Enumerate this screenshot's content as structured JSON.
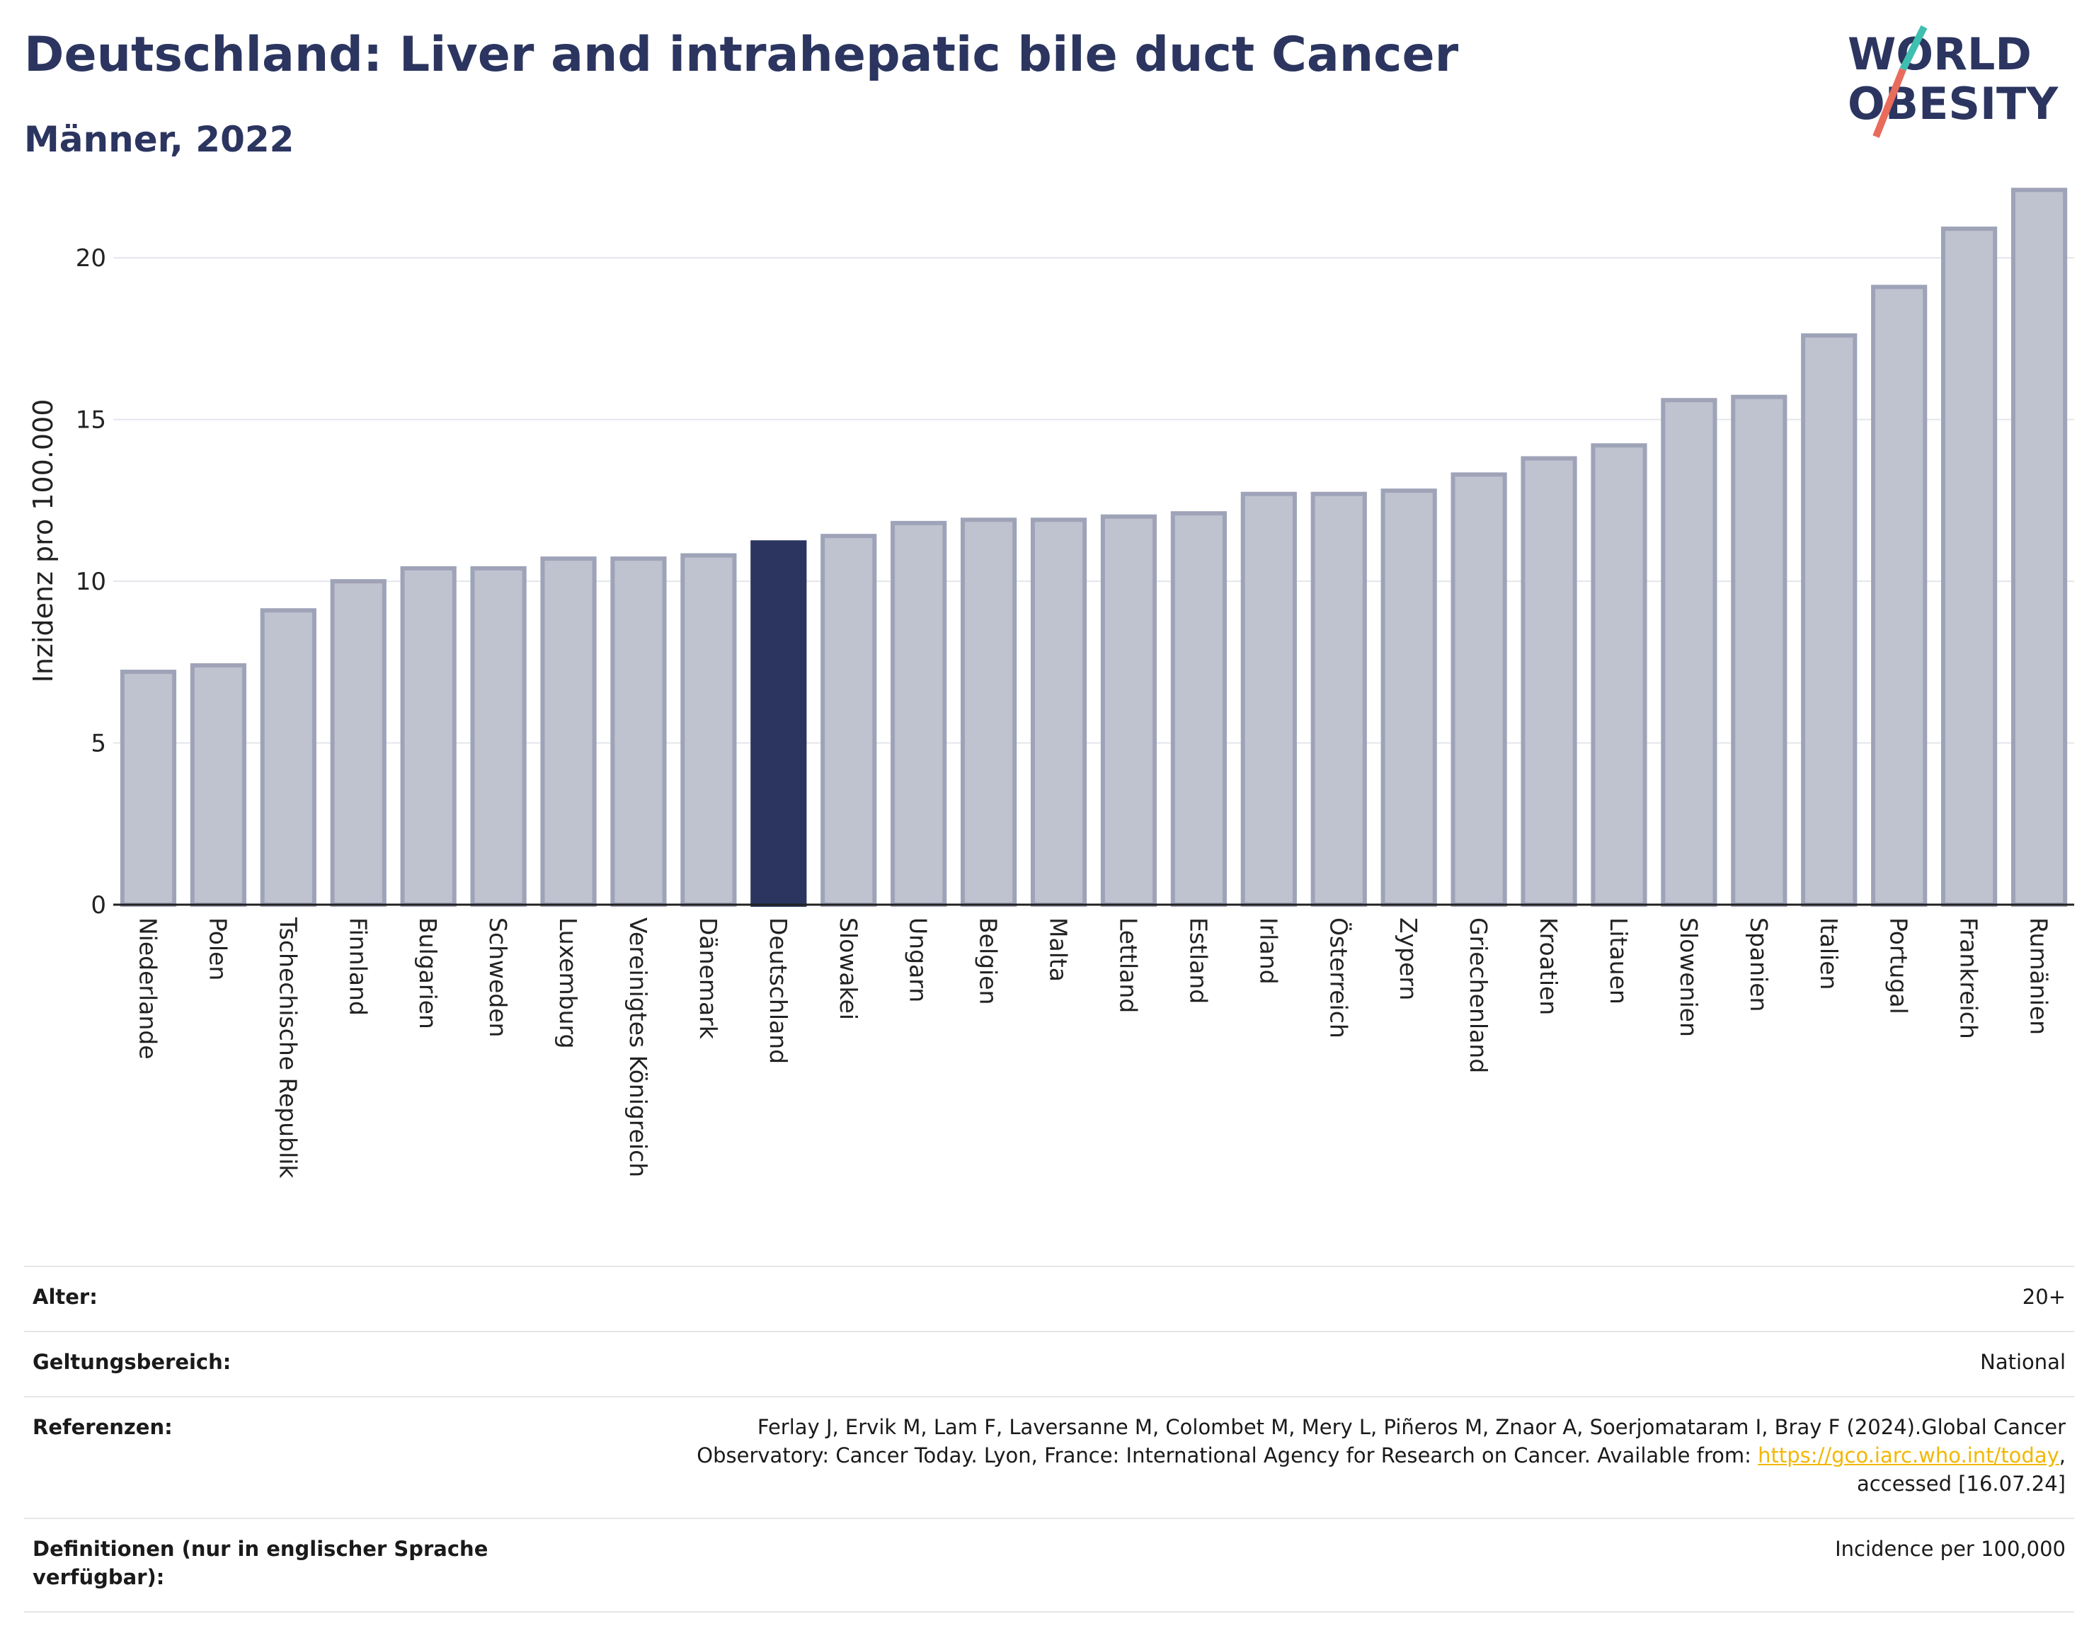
{
  "header": {
    "title": "Deutschland: Liver and intrahepatic bile duct Cancer",
    "subtitle": "Männer, 2022"
  },
  "logo": {
    "line1": "WORLD",
    "line2": "OBESITY"
  },
  "colors": {
    "highlight": "#2b3560",
    "bar_fill": "#bfc2cf",
    "bar_stroke": "#9ea3b8",
    "text": "#2b3560",
    "link": "#f2b705",
    "logo_teal": "#3fbfb0",
    "logo_red": "#e96b5b"
  },
  "chart_data": {
    "type": "bar",
    "ylabel": "Inzidenz pro 100.000",
    "ylim": [
      0,
      22.5
    ],
    "yticks": [
      0,
      5,
      10,
      15,
      20
    ],
    "grid": true,
    "highlight": "Deutschland",
    "categories": [
      "Niederlande",
      "Polen",
      "Tschechische Republik",
      "Finnland",
      "Bulgarien",
      "Schweden",
      "Luxemburg",
      "Vereinigtes Königreich",
      "Dänemark",
      "Deutschland",
      "Slowakei",
      "Ungarn",
      "Belgien",
      "Malta",
      "Lettland",
      "Estland",
      "Irland",
      "Österreich",
      "Zypern",
      "Griechenland",
      "Kroatien",
      "Litauen",
      "Slowenien",
      "Spanien",
      "Italien",
      "Portugal",
      "Frankreich",
      "Rumänien"
    ],
    "values": [
      7.2,
      7.4,
      9.1,
      10.0,
      10.4,
      10.4,
      10.7,
      10.7,
      10.8,
      11.2,
      11.4,
      11.8,
      11.9,
      11.9,
      12.0,
      12.1,
      12.7,
      12.7,
      12.8,
      13.3,
      13.8,
      14.2,
      15.6,
      15.7,
      17.6,
      19.1,
      20.9,
      22.1
    ]
  },
  "info": {
    "age_label": "Alter:",
    "age_value": "20+",
    "scope_label": "Geltungsbereich:",
    "scope_value": "National",
    "refs_label": "Referenzen:",
    "refs_line1": "Ferlay J, Ervik M, Lam F, Laversanne M, Colombet M, Mery L, Piñeros M, Znaor A, Soerjomataram I, Bray F (2024).Global Cancer",
    "refs_line2": "Observatory: Cancer Today. Lyon, France: International Agency for Research on Cancer. Available from: ",
    "refs_link": "https://gco.iarc.who.int/today",
    "refs_line2_end": ",",
    "refs_line3": "accessed [16.07.24]",
    "defs_label": "Definitionen (nur in englischer Sprache verfügbar):",
    "defs_value": "Incidence per 100,000"
  }
}
